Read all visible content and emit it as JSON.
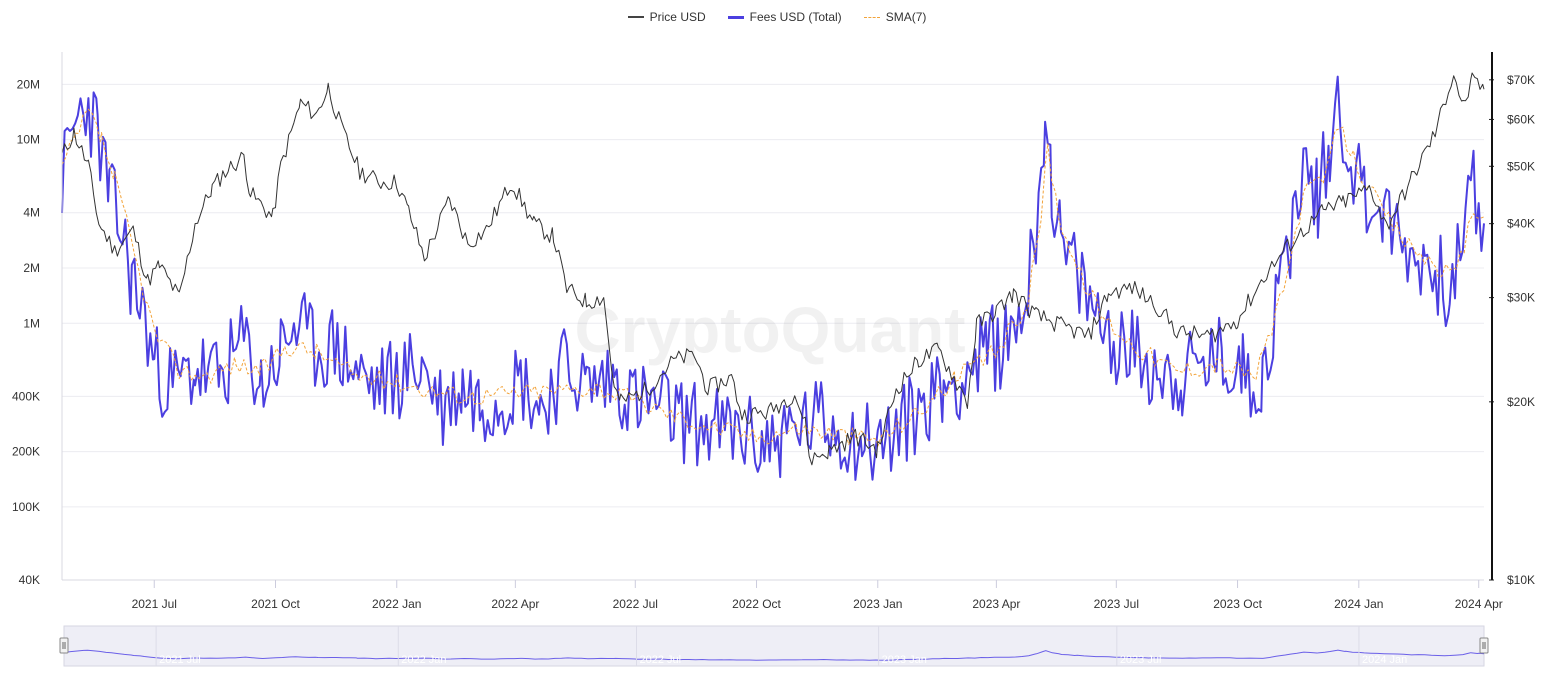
{
  "legend": [
    {
      "label": "Price USD",
      "color": "#444444",
      "style": "solid"
    },
    {
      "label": "Fees USD (Total)",
      "color": "#4b3fe0",
      "style": "solid"
    },
    {
      "label": "SMA(7)",
      "color": "#f2a33a",
      "style": "dashed"
    }
  ],
  "watermark": "CryptoQuant",
  "chart_data": {
    "type": "line",
    "x_range": [
      "2021-04-22",
      "2024-04-05"
    ],
    "x_ticks": [
      {
        "date": "2021-07-01",
        "label": "2021 Jul"
      },
      {
        "date": "2021-10-01",
        "label": "2021 Oct"
      },
      {
        "date": "2022-01-01",
        "label": "2022 Jan"
      },
      {
        "date": "2022-04-01",
        "label": "2022 Apr"
      },
      {
        "date": "2022-07-01",
        "label": "2022 Jul"
      },
      {
        "date": "2022-10-01",
        "label": "2022 Oct"
      },
      {
        "date": "2023-01-01",
        "label": "2023 Jan"
      },
      {
        "date": "2023-04-01",
        "label": "2023 Apr"
      },
      {
        "date": "2023-07-01",
        "label": "2023 Jul"
      },
      {
        "date": "2023-10-01",
        "label": "2023 Oct"
      },
      {
        "date": "2024-01-01",
        "label": "2024 Jan"
      },
      {
        "date": "2024-04-01",
        "label": "2024 Apr"
      }
    ],
    "y_left": {
      "scale": "log",
      "range": [
        40000,
        30000000
      ],
      "ticks": [
        {
          "value": 20000000,
          "label": "20M"
        },
        {
          "value": 10000000,
          "label": "10M"
        },
        {
          "value": 4000000,
          "label": "4M"
        },
        {
          "value": 2000000,
          "label": "2M"
        },
        {
          "value": 1000000,
          "label": "1M"
        },
        {
          "value": 400000,
          "label": "400K"
        },
        {
          "value": 200000,
          "label": "200K"
        },
        {
          "value": 100000,
          "label": "100K"
        },
        {
          "value": 40000,
          "label": "40K"
        }
      ]
    },
    "y_right": {
      "scale": "log",
      "range": [
        10000,
        78000
      ],
      "ticks": [
        {
          "value": 70000,
          "label": "$70K"
        },
        {
          "value": 60000,
          "label": "$60K"
        },
        {
          "value": 50000,
          "label": "$50K"
        },
        {
          "value": 40000,
          "label": "$40K"
        },
        {
          "value": 30000,
          "label": "$30K"
        },
        {
          "value": 20000,
          "label": "$20K"
        },
        {
          "value": 10000,
          "label": "$10K"
        }
      ]
    },
    "grid": "horizontal",
    "legend_position": "top-center",
    "series": [
      {
        "name": "Price USD",
        "axis": "right",
        "color": "#333333",
        "points": [
          [
            "2021-04-22",
            52000
          ],
          [
            "2021-05-01",
            57000
          ],
          [
            "2021-05-12",
            50000
          ],
          [
            "2021-05-20",
            40000
          ],
          [
            "2021-06-01",
            36000
          ],
          [
            "2021-06-15",
            39000
          ],
          [
            "2021-06-26",
            32000
          ],
          [
            "2021-07-05",
            34000
          ],
          [
            "2021-07-20",
            30000
          ],
          [
            "2021-08-01",
            40000
          ],
          [
            "2021-08-14",
            46000
          ],
          [
            "2021-08-24",
            49000
          ],
          [
            "2021-09-07",
            52000
          ],
          [
            "2021-09-12",
            45000
          ],
          [
            "2021-09-29",
            41000
          ],
          [
            "2021-10-05",
            50000
          ],
          [
            "2021-10-20",
            64000
          ],
          [
            "2021-11-01",
            61000
          ],
          [
            "2021-11-10",
            68000
          ],
          [
            "2021-11-20",
            58000
          ],
          [
            "2021-12-04",
            49000
          ],
          [
            "2021-12-20",
            47000
          ],
          [
            "2022-01-01",
            47000
          ],
          [
            "2022-01-10",
            42000
          ],
          [
            "2022-01-22",
            35000
          ],
          [
            "2022-02-10",
            44000
          ],
          [
            "2022-02-24",
            37000
          ],
          [
            "2022-03-10",
            39000
          ],
          [
            "2022-03-29",
            47000
          ],
          [
            "2022-04-15",
            40000
          ],
          [
            "2022-04-30",
            38000
          ],
          [
            "2022-05-10",
            31000
          ],
          [
            "2022-05-25",
            29500
          ],
          [
            "2022-06-07",
            30000
          ],
          [
            "2022-06-15",
            21000
          ],
          [
            "2022-06-20",
            20000
          ],
          [
            "2022-07-10",
            21000
          ],
          [
            "2022-07-30",
            23500
          ],
          [
            "2022-08-15",
            24000
          ],
          [
            "2022-08-25",
            21000
          ],
          [
            "2022-09-12",
            22000
          ],
          [
            "2022-09-20",
            19000
          ],
          [
            "2022-10-10",
            19200
          ],
          [
            "2022-10-30",
            20700
          ],
          [
            "2022-11-08",
            18000
          ],
          [
            "2022-11-10",
            16000
          ],
          [
            "2022-11-25",
            16500
          ],
          [
            "2022-12-15",
            17500
          ],
          [
            "2023-01-01",
            16600
          ],
          [
            "2023-01-15",
            21000
          ],
          [
            "2023-02-01",
            23500
          ],
          [
            "2023-02-16",
            24500
          ],
          [
            "2023-03-10",
            20000
          ],
          [
            "2023-03-17",
            27000
          ],
          [
            "2023-04-01",
            28500
          ],
          [
            "2023-04-14",
            30500
          ],
          [
            "2023-05-01",
            28000
          ],
          [
            "2023-05-20",
            26900
          ],
          [
            "2023-06-10",
            25800
          ],
          [
            "2023-06-25",
            30500
          ],
          [
            "2023-07-13",
            31200
          ],
          [
            "2023-07-31",
            29200
          ],
          [
            "2023-08-17",
            26200
          ],
          [
            "2023-09-10",
            25800
          ],
          [
            "2023-10-01",
            27500
          ],
          [
            "2023-10-23",
            33000
          ],
          [
            "2023-11-10",
            37000
          ],
          [
            "2023-12-05",
            42000
          ],
          [
            "2023-12-20",
            43500
          ],
          [
            "2024-01-10",
            46000
          ],
          [
            "2024-01-22",
            39500
          ],
          [
            "2024-02-10",
            47500
          ],
          [
            "2024-02-28",
            57000
          ],
          [
            "2024-03-13",
            72000
          ],
          [
            "2024-03-20",
            63000
          ],
          [
            "2024-03-27",
            69500
          ],
          [
            "2024-04-05",
            67500
          ]
        ]
      },
      {
        "name": "Fees USD (Total)",
        "axis": "left",
        "color": "#4b3fe0",
        "points": [
          [
            "2021-04-22",
            6000000
          ],
          [
            "2021-05-02",
            12000000
          ],
          [
            "2021-05-10",
            16000000
          ],
          [
            "2021-05-19",
            11000000
          ],
          [
            "2021-05-28",
            5000000
          ],
          [
            "2021-06-07",
            3000000
          ],
          [
            "2021-06-14",
            1700000
          ],
          [
            "2021-06-22",
            1200000
          ],
          [
            "2021-07-01",
            600000
          ],
          [
            "2021-07-15",
            450000
          ],
          [
            "2021-08-01",
            550000
          ],
          [
            "2021-08-20",
            500000
          ],
          [
            "2021-09-07",
            800000
          ],
          [
            "2021-09-20",
            450000
          ],
          [
            "2021-10-05",
            700000
          ],
          [
            "2021-10-15",
            1000000
          ],
          [
            "2021-11-01",
            700000
          ],
          [
            "2021-11-15",
            750000
          ],
          [
            "2021-12-01",
            550000
          ],
          [
            "2021-12-15",
            450000
          ],
          [
            "2022-01-01",
            500000
          ],
          [
            "2022-01-20",
            600000
          ],
          [
            "2022-02-05",
            350000
          ],
          [
            "2022-02-20",
            450000
          ],
          [
            "2022-03-05",
            380000
          ],
          [
            "2022-03-20",
            400000
          ],
          [
            "2022-04-05",
            500000
          ],
          [
            "2022-04-20",
            350000
          ],
          [
            "2022-05-10",
            600000
          ],
          [
            "2022-05-25",
            450000
          ],
          [
            "2022-06-15",
            500000
          ],
          [
            "2022-07-01",
            380000
          ],
          [
            "2022-07-20",
            350000
          ],
          [
            "2022-08-05",
            300000
          ],
          [
            "2022-08-20",
            280000
          ],
          [
            "2022-09-05",
            260000
          ],
          [
            "2022-09-20",
            250000
          ],
          [
            "2022-10-05",
            220000
          ],
          [
            "2022-10-20",
            240000
          ],
          [
            "2022-11-05",
            280000
          ],
          [
            "2022-11-20",
            300000
          ],
          [
            "2022-12-05",
            250000
          ],
          [
            "2022-12-20",
            230000
          ],
          [
            "2023-01-01",
            220000
          ],
          [
            "2023-01-15",
            250000
          ],
          [
            "2023-02-01",
            350000
          ],
          [
            "2023-02-20",
            450000
          ],
          [
            "2023-03-10",
            550000
          ],
          [
            "2023-03-25",
            700000
          ],
          [
            "2023-04-10",
            800000
          ],
          [
            "2023-04-25",
            1500000
          ],
          [
            "2023-05-01",
            3500000
          ],
          [
            "2023-05-08",
            14000000
          ],
          [
            "2023-05-13",
            6000000
          ],
          [
            "2023-05-20",
            2500000
          ],
          [
            "2023-06-01",
            1800000
          ],
          [
            "2023-06-15",
            1100000
          ],
          [
            "2023-07-01",
            800000
          ],
          [
            "2023-07-20",
            650000
          ],
          [
            "2023-08-05",
            550000
          ],
          [
            "2023-08-20",
            500000
          ],
          [
            "2023-09-05",
            600000
          ],
          [
            "2023-09-20",
            650000
          ],
          [
            "2023-10-05",
            550000
          ],
          [
            "2023-10-20",
            500000
          ],
          [
            "2023-11-01",
            1400000
          ],
          [
            "2023-11-10",
            3000000
          ],
          [
            "2023-11-20",
            7000000
          ],
          [
            "2023-12-01",
            5000000
          ],
          [
            "2023-12-10",
            9000000
          ],
          [
            "2023-12-16",
            17000000
          ],
          [
            "2023-12-22",
            10000000
          ],
          [
            "2024-01-05",
            5000000
          ],
          [
            "2024-01-20",
            4000000
          ],
          [
            "2024-02-05",
            2500000
          ],
          [
            "2024-02-20",
            2200000
          ],
          [
            "2024-03-01",
            1800000
          ],
          [
            "2024-03-10",
            1600000
          ],
          [
            "2024-03-20",
            2500000
          ],
          [
            "2024-03-26",
            6000000
          ],
          [
            "2024-04-01",
            4000000
          ],
          [
            "2024-04-05",
            3500000
          ]
        ]
      },
      {
        "name": "SMA(7)",
        "axis": "left",
        "color": "#f2a33a",
        "style": "dashed",
        "points": [
          [
            "2021-04-22",
            7000000
          ],
          [
            "2021-05-02",
            10000000
          ],
          [
            "2021-05-12",
            14000000
          ],
          [
            "2021-05-22",
            10000000
          ],
          [
            "2021-06-01",
            6000000
          ],
          [
            "2021-06-10",
            3500000
          ],
          [
            "2021-06-20",
            1800000
          ],
          [
            "2021-07-01",
            900000
          ],
          [
            "2021-07-20",
            550000
          ],
          [
            "2021-08-10",
            520000
          ],
          [
            "2021-09-01",
            600000
          ],
          [
            "2021-09-20",
            550000
          ],
          [
            "2021-10-10",
            750000
          ],
          [
            "2021-11-01",
            700000
          ],
          [
            "2021-12-01",
            520000
          ],
          [
            "2022-01-01",
            480000
          ],
          [
            "2022-02-01",
            420000
          ],
          [
            "2022-03-01",
            400000
          ],
          [
            "2022-04-01",
            420000
          ],
          [
            "2022-05-01",
            430000
          ],
          [
            "2022-06-01",
            450000
          ],
          [
            "2022-07-01",
            380000
          ],
          [
            "2022-08-01",
            310000
          ],
          [
            "2022-09-01",
            270000
          ],
          [
            "2022-10-01",
            240000
          ],
          [
            "2022-11-01",
            270000
          ],
          [
            "2022-12-01",
            250000
          ],
          [
            "2023-01-01",
            230000
          ],
          [
            "2023-02-01",
            330000
          ],
          [
            "2023-03-01",
            500000
          ],
          [
            "2023-04-01",
            700000
          ],
          [
            "2023-04-25",
            1300000
          ],
          [
            "2023-05-05",
            4000000
          ],
          [
            "2023-05-10",
            9000000
          ],
          [
            "2023-05-18",
            4000000
          ],
          [
            "2023-06-01",
            2000000
          ],
          [
            "2023-06-20",
            1100000
          ],
          [
            "2023-07-15",
            750000
          ],
          [
            "2023-08-15",
            550000
          ],
          [
            "2023-09-15",
            600000
          ],
          [
            "2023-10-15",
            520000
          ],
          [
            "2023-11-05",
            1500000
          ],
          [
            "2023-11-20",
            5000000
          ],
          [
            "2023-12-05",
            6000000
          ],
          [
            "2023-12-17",
            12000000
          ],
          [
            "2023-12-28",
            8000000
          ],
          [
            "2024-01-15",
            4500000
          ],
          [
            "2024-02-05",
            2800000
          ],
          [
            "2024-03-01",
            2000000
          ],
          [
            "2024-03-15",
            1800000
          ],
          [
            "2024-03-28",
            4200000
          ],
          [
            "2024-04-05",
            3800000
          ]
        ]
      }
    ]
  },
  "navigator": {
    "ticks": [
      {
        "date": "2021-07-01",
        "label": "2021 Jul"
      },
      {
        "date": "2022-01-01",
        "label": "2022 Jan"
      },
      {
        "date": "2022-07-01",
        "label": "2022 Jul"
      },
      {
        "date": "2023-01-01",
        "label": "2023 Jan"
      },
      {
        "date": "2023-07-01",
        "label": "2023 Jul"
      },
      {
        "date": "2024-01-01",
        "label": "2024 Jan"
      }
    ]
  }
}
